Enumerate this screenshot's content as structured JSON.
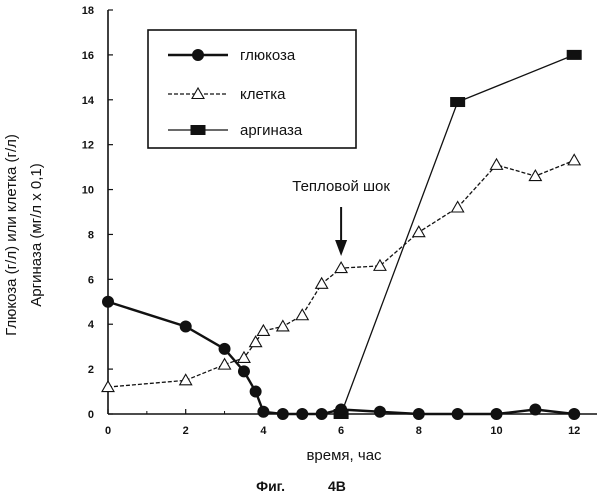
{
  "chart_data": {
    "type": "line",
    "xlabel": "время, час",
    "ylabel_lines": [
      "Глюкоза (г/л) или клетка (г/л)",
      "Аргиназа (мг/л x 0,1)"
    ],
    "xlim": [
      0,
      13
    ],
    "ylim": [
      0,
      18
    ],
    "xticks": [
      "0",
      "2",
      "4",
      "6",
      "8",
      "10",
      "12"
    ],
    "yticks": [
      "0",
      "2",
      "4",
      "6",
      "8",
      "10",
      "12",
      "14",
      "16",
      "18"
    ],
    "grid": false,
    "legend_position": "top-left",
    "series": [
      {
        "name": "глюкоза",
        "marker": "circle",
        "x": [
          0,
          2,
          3,
          3.5,
          3.8,
          4,
          4.5,
          5,
          5.5,
          6,
          7,
          8,
          9,
          10,
          11,
          12
        ],
        "y": [
          5.0,
          3.9,
          2.9,
          1.9,
          1.0,
          0.1,
          0.0,
          0.0,
          0.0,
          0.2,
          0.1,
          0.0,
          0.0,
          0.0,
          0.2,
          0.0
        ]
      },
      {
        "name": "клетка",
        "marker": "triangle",
        "x": [
          0,
          2,
          3,
          3.5,
          3.8,
          4,
          4.5,
          5,
          5.5,
          6,
          7,
          8,
          9,
          10,
          11,
          12
        ],
        "y": [
          1.2,
          1.5,
          2.2,
          2.5,
          3.2,
          3.7,
          3.9,
          4.4,
          5.8,
          6.5,
          6.6,
          8.1,
          9.2,
          11.1,
          10.6,
          11.3
        ]
      },
      {
        "name": "аргиназа",
        "marker": "square",
        "x": [
          6,
          9,
          12
        ],
        "y": [
          0.0,
          13.9,
          16.0
        ]
      }
    ],
    "annotations": [
      {
        "text": "Тепловой шок",
        "x": 6
      }
    ],
    "caption": [
      "Фиг.",
      "4B"
    ]
  }
}
